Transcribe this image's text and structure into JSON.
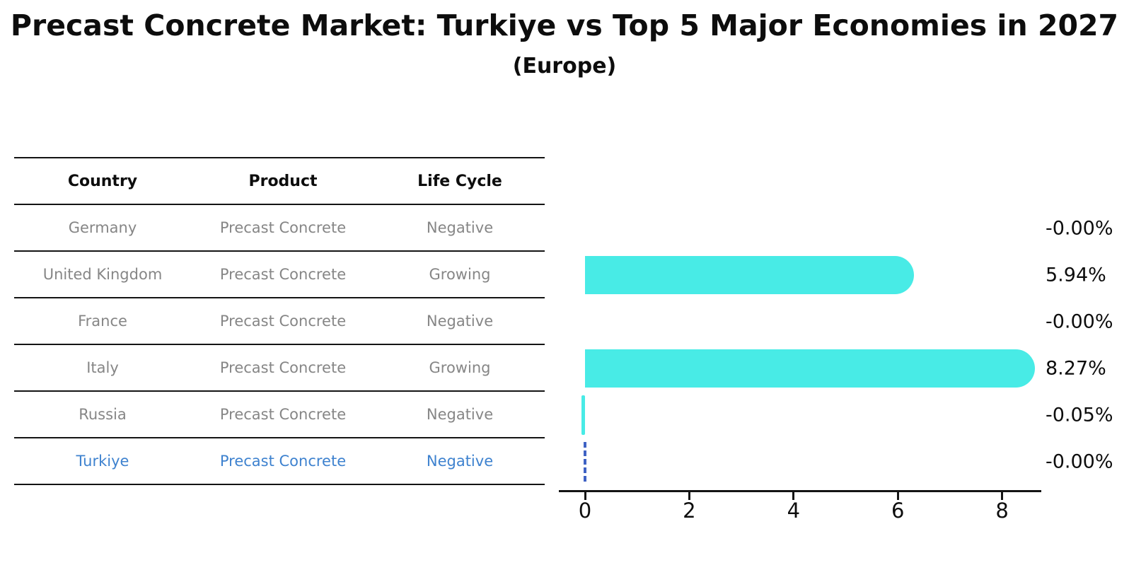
{
  "title": "Precast Concrete Market: Turkiye vs Top 5 Major Economies in 2027",
  "subtitle": "(Europe)",
  "table": {
    "headers": [
      "Country",
      "Product",
      "Life Cycle"
    ],
    "rows": [
      {
        "country": "Germany",
        "product": "Precast Concrete",
        "life_cycle": "Negative",
        "highlight": false
      },
      {
        "country": "United Kingdom",
        "product": "Precast Concrete",
        "life_cycle": "Growing",
        "highlight": false
      },
      {
        "country": "France",
        "product": "Precast Concrete",
        "life_cycle": "Negative",
        "highlight": false
      },
      {
        "country": "Italy",
        "product": "Precast Concrete",
        "life_cycle": "Growing",
        "highlight": false
      },
      {
        "country": "Russia",
        "product": "Precast Concrete",
        "life_cycle": "Negative",
        "highlight": false
      },
      {
        "country": "Turkiye",
        "product": "Precast Concrete",
        "life_cycle": "Negative",
        "highlight": true
      }
    ]
  },
  "chart_data": {
    "type": "bar",
    "orientation": "horizontal",
    "title": "Precast Concrete Market: Turkiye vs Top 5 Major Economies in 2027 (Europe)",
    "categories": [
      "Germany",
      "United Kingdom",
      "France",
      "Italy",
      "Russia",
      "Turkiye"
    ],
    "values": [
      -0.0,
      5.94,
      -0.0,
      8.27,
      -0.05,
      -0.0
    ],
    "value_labels": [
      "-0.00%",
      "5.94%",
      "-0.00%",
      "8.27%",
      "-0.05%",
      "-0.00%"
    ],
    "value_unit": "%",
    "xticks": [
      0,
      2,
      4,
      6,
      8
    ],
    "xlim": [
      -0.5,
      8.75
    ],
    "grid": false,
    "legend": false,
    "bar_color": "#48ebe6",
    "highlight_index": 5,
    "highlight_style": "dashed-vertical-line-at-zero",
    "highlight_line_color": "#3f62c4",
    "label_color": "#0d0d0d",
    "axis_color": "#141414"
  },
  "colors": {
    "background": "#ffffff",
    "table_text": "#868686",
    "table_header_text": "#0d0d0d",
    "highlight_text": "#3e82cf"
  }
}
